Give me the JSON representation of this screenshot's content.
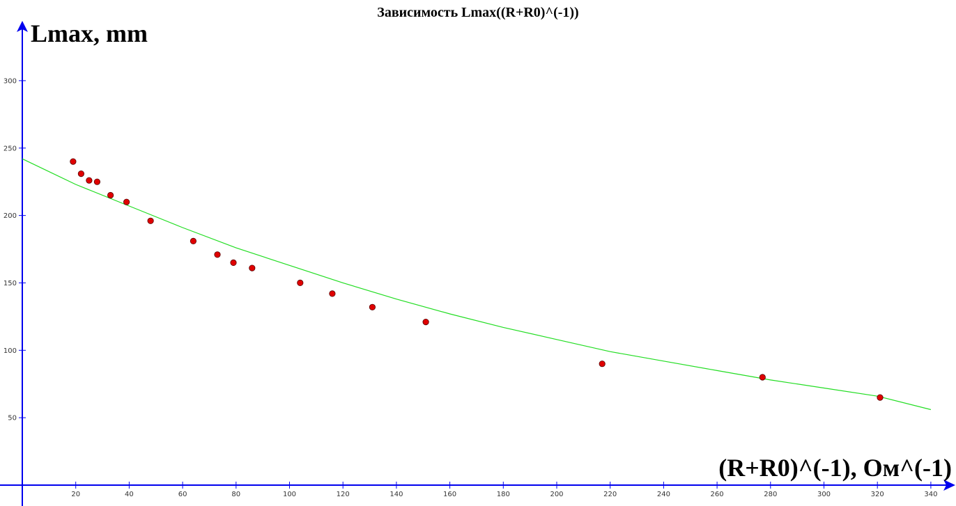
{
  "chart_data": {
    "type": "scatter",
    "title": "Зависимость Lmax((R+R0)^(-1))",
    "xlabel": "(R+R0)^(-1), Ом^(-1)",
    "ylabel": "Lmax, mm",
    "xlim": [
      0,
      340
    ],
    "ylim": [
      0,
      300
    ],
    "x_ticks": [
      20,
      40,
      60,
      80,
      100,
      120,
      140,
      160,
      180,
      200,
      220,
      240,
      260,
      280,
      300,
      320,
      340
    ],
    "y_ticks": [
      50,
      100,
      150,
      200,
      250,
      300
    ],
    "grid": false,
    "legend": "none",
    "series": [
      {
        "kind": "points",
        "color": "#e00000",
        "x": [
          19,
          22,
          25,
          28,
          33,
          39,
          48,
          64,
          73,
          79,
          86,
          104,
          116,
          131,
          151,
          217,
          277,
          321
        ],
        "y": [
          240,
          231,
          226,
          225,
          215,
          210,
          196,
          181,
          171,
          165,
          161,
          150,
          142,
          132,
          121,
          90,
          80,
          65
        ]
      },
      {
        "kind": "fit-curve",
        "color": "#22dd22",
        "x": [
          0,
          20,
          40,
          60,
          80,
          100,
          120,
          140,
          160,
          180,
          200,
          220,
          240,
          260,
          280,
          300,
          320,
          340
        ],
        "y": [
          242,
          223,
          207,
          191,
          176,
          163,
          150,
          138,
          127,
          117,
          108,
          99,
          92,
          85,
          78,
          72,
          66,
          56
        ]
      }
    ],
    "axis_color": "#0000ee"
  }
}
